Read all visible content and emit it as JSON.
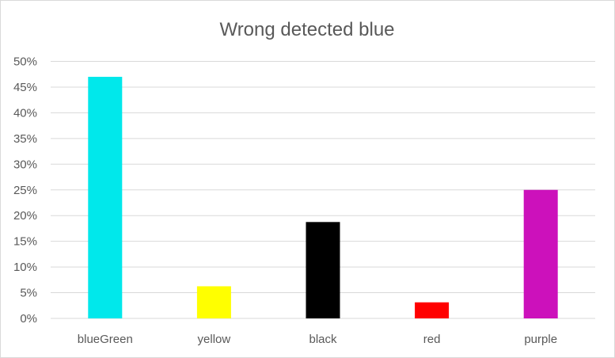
{
  "chart_data": {
    "type": "bar",
    "title": "Wrong detected blue",
    "xlabel": "",
    "ylabel": "",
    "categories": [
      "blueGreen",
      "yellow",
      "black",
      "red",
      "purple"
    ],
    "values": [
      0.47,
      0.0625,
      0.1875,
      0.03125,
      0.25
    ],
    "colors": [
      "#00E8EB",
      "#FFFF00",
      "#000000",
      "#FF0000",
      "#CC11BB"
    ],
    "ylim": [
      0,
      0.5
    ],
    "yticks": [
      0,
      0.05,
      0.1,
      0.15,
      0.2,
      0.25,
      0.3,
      0.35,
      0.4,
      0.45,
      0.5
    ],
    "ytick_labels": [
      "0%",
      "5%",
      "10%",
      "15%",
      "20%",
      "25%",
      "30%",
      "35%",
      "40%",
      "45%",
      "50%"
    ],
    "gridlines": true,
    "grid_color": "#d9d9d9",
    "legend": "none"
  }
}
